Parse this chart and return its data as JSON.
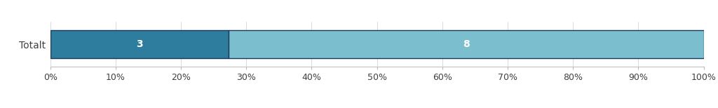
{
  "segment1_pct": 27.272727,
  "segment1_label": "3",
  "segment1_color": "#2E7D9E",
  "segment2_pct": 72.727273,
  "segment2_label": "8",
  "segment2_color": "#7BBFCF",
  "xlabel_ticks": [
    0,
    10,
    20,
    30,
    40,
    50,
    60,
    70,
    80,
    90,
    100
  ],
  "bar_edge_color": "#1B3A5C",
  "bar_height": 0.62,
  "ylabel_text": "Totalt",
  "background_color": "#FFFFFF",
  "text_color": "#404040",
  "fontsize": 9,
  "label_fontsize": 10
}
